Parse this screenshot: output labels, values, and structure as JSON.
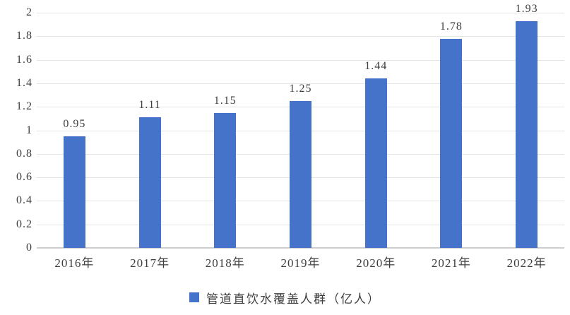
{
  "chart_data": {
    "type": "bar",
    "title": "",
    "xlabel": "",
    "ylabel": "",
    "categories": [
      "2016年",
      "2017年",
      "2018年",
      "2019年",
      "2020年",
      "2021年",
      "2022年"
    ],
    "values": [
      0.95,
      1.11,
      1.15,
      1.25,
      1.44,
      1.78,
      1.93
    ],
    "value_labels": [
      "0.95",
      "1.11",
      "1.15",
      "1.25",
      "1.44",
      "1.78",
      "1.93"
    ],
    "ylim": [
      0,
      2
    ],
    "ytick_interval": 0.2,
    "ytick_labels": [
      "0",
      "0.2",
      "0.4",
      "0.6",
      "0.8",
      "1",
      "1.2",
      "1.4",
      "1.6",
      "1.8",
      "2"
    ],
    "grid": true,
    "legend": {
      "label": "管道直饮水覆盖人群（亿人）",
      "position": "bottom-center"
    },
    "colors": {
      "bar": "#4573C9",
      "gridline": "#E4E4E4",
      "axis_line": "#CFCFCF",
      "text": "#3E3E3E",
      "background": "#FFFFFF"
    }
  }
}
